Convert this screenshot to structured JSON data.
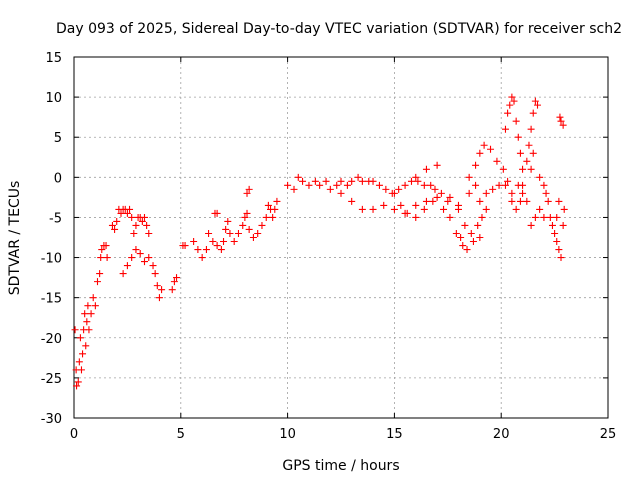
{
  "chart_data": {
    "type": "scatter",
    "title": "Day 093 of 2025, Sidereal Day-to-day VTEC variation (SDTVAR) for receiver sch2",
    "xlabel": "GPS time / hours",
    "ylabel": "SDTVAR / TECUs",
    "xlim": [
      0,
      25
    ],
    "ylim": [
      -30,
      15
    ],
    "xticks": [
      0,
      5,
      10,
      15,
      20,
      25
    ],
    "yticks": [
      -30,
      -25,
      -20,
      -15,
      -10,
      -5,
      0,
      5,
      10,
      15
    ],
    "grid": true,
    "marker": "+",
    "color": "#ff0000",
    "series": [
      {
        "name": "SDTVAR",
        "points": [
          [
            0.05,
            -19
          ],
          [
            0.1,
            -24
          ],
          [
            0.12,
            -26
          ],
          [
            0.2,
            -25.5
          ],
          [
            0.25,
            -23
          ],
          [
            0.3,
            -20
          ],
          [
            0.35,
            -24
          ],
          [
            0.4,
            -22
          ],
          [
            0.45,
            -19
          ],
          [
            0.5,
            -17
          ],
          [
            0.55,
            -21
          ],
          [
            0.6,
            -18
          ],
          [
            0.65,
            -16
          ],
          [
            0.7,
            -19
          ],
          [
            0.8,
            -17
          ],
          [
            0.9,
            -15
          ],
          [
            1.0,
            -16
          ],
          [
            1.1,
            -13
          ],
          [
            1.2,
            -12
          ],
          [
            1.25,
            -10
          ],
          [
            1.3,
            -9
          ],
          [
            1.4,
            -8.5
          ],
          [
            1.5,
            -8.5
          ],
          [
            1.55,
            -10
          ],
          [
            1.8,
            -6
          ],
          [
            1.9,
            -6.5
          ],
          [
            2.0,
            -5.5
          ],
          [
            2.1,
            -4
          ],
          [
            2.2,
            -4.5
          ],
          [
            2.3,
            -4
          ],
          [
            2.4,
            -4
          ],
          [
            2.5,
            -4.5
          ],
          [
            2.6,
            -4
          ],
          [
            2.7,
            -5
          ],
          [
            2.8,
            -7
          ],
          [
            2.9,
            -6
          ],
          [
            3.0,
            -5
          ],
          [
            3.1,
            -5
          ],
          [
            3.2,
            -5.5
          ],
          [
            3.3,
            -5
          ],
          [
            3.4,
            -6
          ],
          [
            3.5,
            -7
          ],
          [
            2.3,
            -12
          ],
          [
            2.5,
            -11
          ],
          [
            2.7,
            -10
          ],
          [
            2.9,
            -9
          ],
          [
            3.1,
            -9.5
          ],
          [
            3.3,
            -10.5
          ],
          [
            3.5,
            -10
          ],
          [
            3.7,
            -11
          ],
          [
            3.8,
            -12
          ],
          [
            3.9,
            -13.5
          ],
          [
            4.0,
            -15
          ],
          [
            4.1,
            -14
          ],
          [
            4.6,
            -14
          ],
          [
            4.7,
            -13
          ],
          [
            4.8,
            -12.5
          ],
          [
            5.1,
            -8.5
          ],
          [
            5.2,
            -8.5
          ],
          [
            5.6,
            -8
          ],
          [
            5.8,
            -9
          ],
          [
            6.0,
            -10
          ],
          [
            6.2,
            -9
          ],
          [
            6.3,
            -7
          ],
          [
            6.5,
            -8
          ],
          [
            6.7,
            -8.5
          ],
          [
            6.9,
            -9
          ],
          [
            7.0,
            -8
          ],
          [
            7.1,
            -6.5
          ],
          [
            7.2,
            -5.5
          ],
          [
            7.3,
            -7
          ],
          [
            7.5,
            -8
          ],
          [
            7.7,
            -7
          ],
          [
            7.9,
            -6
          ],
          [
            8.0,
            -5
          ],
          [
            8.1,
            -4.5
          ],
          [
            8.2,
            -6.5
          ],
          [
            8.4,
            -7.5
          ],
          [
            8.6,
            -7
          ],
          [
            8.8,
            -6
          ],
          [
            9.0,
            -5
          ],
          [
            9.1,
            -3.5
          ],
          [
            9.2,
            -4
          ],
          [
            9.3,
            -5
          ],
          [
            9.4,
            -4
          ],
          [
            9.5,
            -3
          ],
          [
            8.1,
            -2
          ],
          [
            8.2,
            -1.5
          ],
          [
            6.6,
            -4.5
          ],
          [
            6.7,
            -4.5
          ],
          [
            10.0,
            -1
          ],
          [
            10.3,
            -1.5
          ],
          [
            10.5,
            0
          ],
          [
            10.7,
            -0.5
          ],
          [
            11.0,
            -1
          ],
          [
            11.3,
            -0.5
          ],
          [
            11.5,
            -1
          ],
          [
            11.8,
            -0.5
          ],
          [
            12.0,
            -1.5
          ],
          [
            12.3,
            -1
          ],
          [
            12.5,
            -0.5
          ],
          [
            12.8,
            -1
          ],
          [
            13.0,
            -0.5
          ],
          [
            13.3,
            0
          ],
          [
            13.5,
            -0.5
          ],
          [
            13.8,
            -0.5
          ],
          [
            14.0,
            -0.5
          ],
          [
            14.3,
            -1
          ],
          [
            14.6,
            -1.5
          ],
          [
            14.9,
            -2
          ],
          [
            15.2,
            -1.5
          ],
          [
            15.5,
            -1
          ],
          [
            15.8,
            -0.5
          ],
          [
            16.1,
            -0.5
          ],
          [
            16.4,
            -1
          ],
          [
            16.7,
            -1
          ],
          [
            16.9,
            -1.5
          ],
          [
            17.0,
            1.5
          ],
          [
            16.5,
            1
          ],
          [
            16.0,
            0
          ],
          [
            12.5,
            -2
          ],
          [
            13.0,
            -3
          ],
          [
            13.5,
            -4
          ],
          [
            14.0,
            -4
          ],
          [
            14.5,
            -3.5
          ],
          [
            15.0,
            -4
          ],
          [
            15.5,
            -4.5
          ],
          [
            16.0,
            -3.5
          ],
          [
            16.5,
            -3
          ],
          [
            17.0,
            -2.5
          ],
          [
            17.5,
            -3
          ],
          [
            18.0,
            -3.5
          ],
          [
            15.0,
            -2
          ],
          [
            15.3,
            -3.5
          ],
          [
            15.6,
            -4.5
          ],
          [
            16.0,
            -5
          ],
          [
            16.4,
            -4
          ],
          [
            16.8,
            -3
          ],
          [
            17.2,
            -2
          ],
          [
            17.6,
            -2.5
          ],
          [
            18.0,
            -4
          ],
          [
            18.3,
            -6
          ],
          [
            18.6,
            -7
          ],
          [
            18.9,
            -6
          ],
          [
            19.1,
            -5
          ],
          [
            19.3,
            -4
          ],
          [
            17.3,
            -4
          ],
          [
            17.6,
            -5
          ],
          [
            17.9,
            -7
          ],
          [
            18.2,
            -8.5
          ],
          [
            18.4,
            -9
          ],
          [
            18.1,
            -7.5
          ],
          [
            18.7,
            -8
          ],
          [
            19.0,
            -7.5
          ],
          [
            18.5,
            -2
          ],
          [
            18.8,
            -1
          ],
          [
            19.0,
            -3
          ],
          [
            19.3,
            -2
          ],
          [
            19.6,
            -1.5
          ],
          [
            19.9,
            -1
          ],
          [
            20.2,
            -1
          ],
          [
            20.5,
            -2
          ],
          [
            20.8,
            -1
          ],
          [
            21.0,
            -2
          ],
          [
            18.5,
            0
          ],
          [
            18.8,
            1.5
          ],
          [
            19.0,
            3
          ],
          [
            19.2,
            4
          ],
          [
            19.5,
            3.5
          ],
          [
            19.8,
            2
          ],
          [
            20.1,
            1
          ],
          [
            20.3,
            -0.5
          ],
          [
            20.5,
            -3
          ],
          [
            20.7,
            -4
          ],
          [
            20.9,
            -3
          ],
          [
            21.0,
            -1
          ],
          [
            21.2,
            -3
          ],
          [
            21.4,
            -6
          ],
          [
            21.6,
            -5
          ],
          [
            21.8,
            -4
          ],
          [
            22.0,
            -5
          ],
          [
            20.2,
            6
          ],
          [
            20.3,
            8
          ],
          [
            20.4,
            9
          ],
          [
            20.5,
            10
          ],
          [
            20.6,
            9.5
          ],
          [
            20.7,
            7
          ],
          [
            20.8,
            5
          ],
          [
            20.9,
            3
          ],
          [
            21.0,
            1
          ],
          [
            21.2,
            2
          ],
          [
            21.3,
            4
          ],
          [
            21.4,
            6
          ],
          [
            21.5,
            8
          ],
          [
            21.6,
            9.5
          ],
          [
            21.7,
            9
          ],
          [
            21.5,
            3
          ],
          [
            21.4,
            1
          ],
          [
            21.8,
            0
          ],
          [
            22.0,
            -1
          ],
          [
            22.1,
            -2
          ],
          [
            22.2,
            -3
          ],
          [
            22.3,
            -5
          ],
          [
            22.4,
            -6
          ],
          [
            22.5,
            -7
          ],
          [
            22.6,
            -8
          ],
          [
            22.7,
            -9
          ],
          [
            22.8,
            -10
          ],
          [
            22.9,
            -6
          ],
          [
            22.95,
            -4
          ],
          [
            22.6,
            -5
          ],
          [
            22.7,
            -3
          ],
          [
            22.75,
            7.5
          ],
          [
            22.8,
            7
          ],
          [
            22.9,
            6.5
          ]
        ]
      }
    ]
  }
}
